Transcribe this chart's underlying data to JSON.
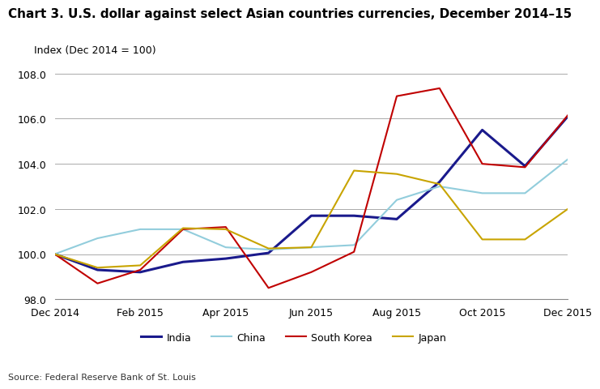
{
  "title": "Chart 3. U.S. dollar against select Asian countries currencies, December 2014–15",
  "index_label": "Index (Dec 2014 = 100)",
  "source": "Source: Federal Reserve Bank of St. Louis",
  "ylim": [
    98.0,
    108.0
  ],
  "yticks": [
    98.0,
    100.0,
    102.0,
    104.0,
    106.0,
    108.0
  ],
  "x_labels": [
    "Dec 2014",
    "Feb 2015",
    "Apr 2015",
    "Jun 2015",
    "Aug 2015",
    "Oct 2015",
    "Dec 2015"
  ],
  "x_positions": [
    0,
    2,
    4,
    6,
    8,
    10,
    12
  ],
  "series": {
    "India": {
      "color": "#1a1a8c",
      "linewidth": 2.2,
      "x": [
        0,
        1,
        2,
        3,
        4,
        5,
        6,
        7,
        8,
        9,
        10,
        11,
        12
      ],
      "y": [
        100.0,
        99.3,
        99.2,
        99.65,
        99.8,
        100.05,
        101.7,
        101.7,
        101.55,
        103.2,
        105.5,
        103.9,
        106.1
      ]
    },
    "China": {
      "color": "#92cddc",
      "linewidth": 1.5,
      "x": [
        0,
        1,
        2,
        3,
        4,
        5,
        6,
        7,
        8,
        9,
        10,
        11,
        12
      ],
      "y": [
        100.0,
        100.7,
        101.1,
        101.1,
        100.3,
        100.2,
        100.3,
        100.4,
        102.4,
        103.0,
        102.7,
        102.7,
        104.2
      ]
    },
    "South Korea": {
      "color": "#c00000",
      "linewidth": 1.5,
      "x": [
        0,
        1,
        2,
        3,
        4,
        5,
        6,
        7,
        8,
        9,
        10,
        11,
        12
      ],
      "y": [
        100.0,
        98.7,
        99.3,
        101.1,
        101.2,
        98.5,
        99.2,
        100.1,
        107.0,
        107.35,
        104.0,
        103.85,
        106.15
      ]
    },
    "Japan": {
      "color": "#c8a400",
      "linewidth": 1.5,
      "x": [
        0,
        1,
        2,
        3,
        4,
        5,
        6,
        7,
        8,
        9,
        10,
        11,
        12
      ],
      "y": [
        100.0,
        99.4,
        99.5,
        101.15,
        101.1,
        100.25,
        100.3,
        103.7,
        103.55,
        103.1,
        100.65,
        100.65,
        102.0
      ]
    }
  },
  "background_color": "#ffffff",
  "grid_color": "#aaaaaa",
  "title_fontsize": 11,
  "index_label_fontsize": 9,
  "tick_fontsize": 9,
  "legend_fontsize": 9,
  "source_fontsize": 8
}
